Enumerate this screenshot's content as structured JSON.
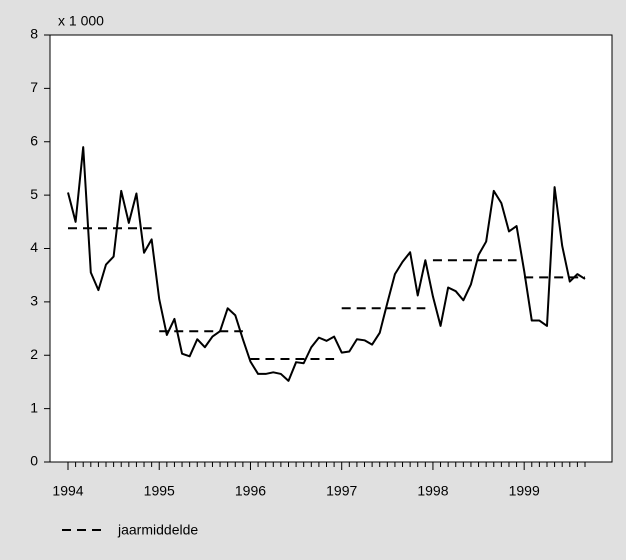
{
  "chart_data": {
    "type": "line",
    "ylabel": "x 1 000",
    "categories": [
      "1994",
      null,
      null,
      null,
      null,
      null,
      null,
      null,
      null,
      null,
      null,
      null,
      "1995",
      null,
      null,
      null,
      null,
      null,
      null,
      null,
      null,
      null,
      null,
      null,
      "1996",
      null,
      null,
      null,
      null,
      null,
      null,
      null,
      null,
      null,
      null,
      null,
      "1997",
      null,
      null,
      null,
      null,
      null,
      null,
      null,
      null,
      null,
      null,
      null,
      "1998",
      null,
      null,
      null,
      null,
      null,
      null,
      null,
      null,
      null,
      null,
      null,
      "1999",
      null,
      null,
      null,
      null,
      null,
      null,
      null,
      null
    ],
    "values": [
      5.05,
      4.5,
      5.9,
      3.55,
      3.22,
      3.7,
      3.85,
      5.08,
      4.48,
      5.03,
      3.92,
      4.17,
      3.05,
      2.38,
      2.68,
      2.03,
      1.98,
      2.3,
      2.15,
      2.35,
      2.45,
      2.88,
      2.75,
      2.3,
      1.88,
      1.65,
      1.65,
      1.68,
      1.65,
      1.52,
      1.87,
      1.85,
      2.15,
      2.33,
      2.27,
      2.35,
      2.05,
      2.07,
      2.3,
      2.28,
      2.2,
      2.42,
      2.98,
      3.52,
      3.75,
      3.93,
      3.12,
      3.78,
      3.1,
      2.55,
      3.27,
      3.2,
      3.03,
      3.33,
      3.88,
      4.13,
      5.08,
      4.85,
      4.32,
      4.42,
      3.58,
      2.65,
      2.65,
      2.55,
      5.15,
      4.05,
      3.38,
      3.52,
      3.43
    ],
    "color": "#000000",
    "averages": {
      "name": "jaarmiddelde",
      "values": [
        4.38,
        2.45,
        1.93,
        2.88,
        3.78,
        3.46
      ]
    },
    "ylim": [
      0,
      8
    ],
    "yticks": [
      0,
      1,
      2,
      3,
      4,
      5,
      6,
      7,
      8
    ]
  }
}
